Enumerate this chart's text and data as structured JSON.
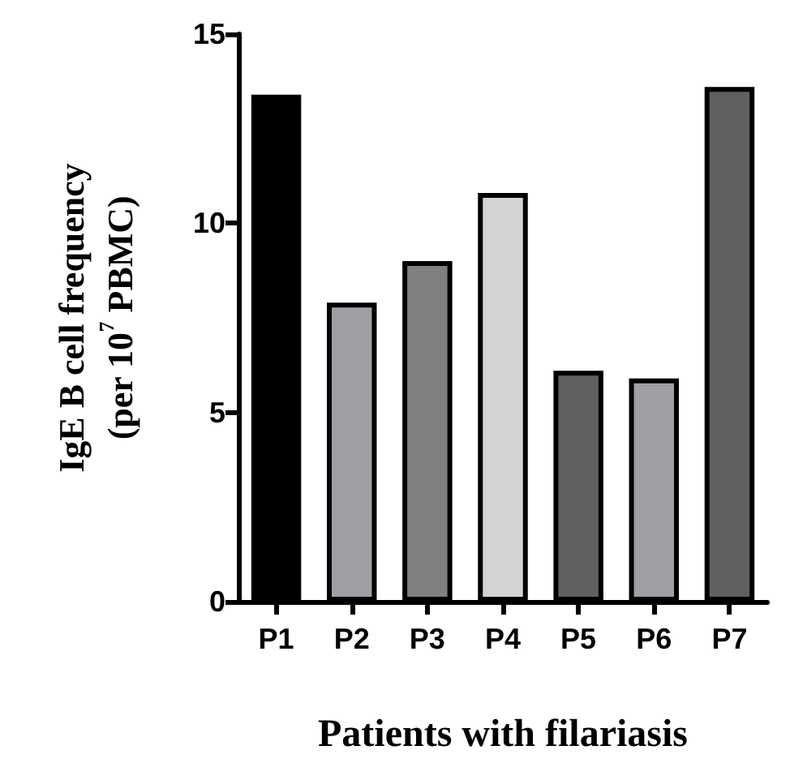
{
  "chart_data": {
    "type": "bar",
    "xlabel": "Patients with filariasis",
    "ylabel": "IgE B cell frequency\n(per 10$^{7}$ PBMC)",
    "categories": [
      "P1",
      "P2",
      "P3",
      "P4",
      "P5",
      "P6",
      "P7"
    ],
    "values": [
      13.4,
      7.9,
      9.0,
      10.8,
      6.1,
      5.9,
      13.6
    ],
    "colors": [
      "#000000",
      "#a09fa4",
      "#808080",
      "#d3d3d3",
      "#606060",
      "#a09fa4",
      "#606060"
    ],
    "ylim": [
      0,
      15
    ],
    "yticks": [
      0,
      5,
      10,
      15
    ],
    "grid": false
  }
}
